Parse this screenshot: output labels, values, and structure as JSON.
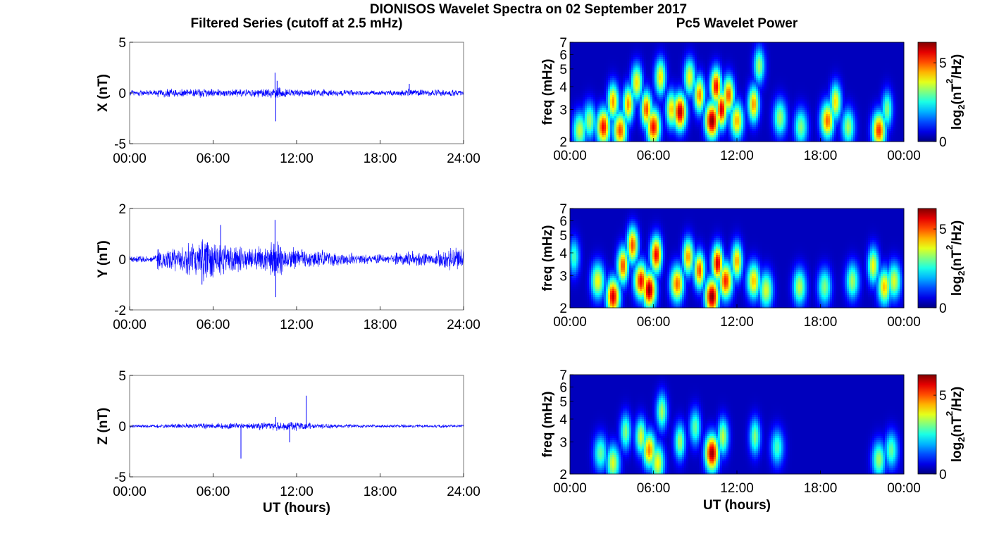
{
  "title": "DIONISOS Wavelet Spectra on 02 September 2017",
  "left_title": "Filtered Series (cutoff at 2.5 mHz)",
  "right_title": "Pc5 Wavelet Power",
  "xlabel": "UT (hours)",
  "colors": {
    "series": "#0000ff",
    "axes": "#000000",
    "background": "#ffffff"
  },
  "chart_data": [
    {
      "type": "line",
      "panel": "X",
      "ylabel": "X (nT)",
      "ylim": [
        -5,
        5
      ],
      "yticks": [
        "5",
        "0",
        "-5"
      ],
      "xticks": [
        "00:00",
        "06:00",
        "12:00",
        "18:00",
        "24:00"
      ],
      "xlim_hours": [
        0,
        24
      ],
      "grid": false,
      "series": [
        {
          "noise_amplitude_nT": [
            0.25,
            0.25,
            0.35,
            0.35,
            0.35,
            0.35,
            0.3,
            0.3,
            0.3,
            0.35,
            0.45,
            0.35,
            0.3,
            0.3,
            0.25,
            0.25,
            0.2,
            0.2,
            0.2,
            0.25,
            0.3,
            0.25,
            0.25,
            0.25
          ],
          "spikes": [
            {
              "x": 10.45,
              "y": 2.0
            },
            {
              "x": 10.5,
              "y": -2.8
            },
            {
              "x": 10.6,
              "y": 1.2
            },
            {
              "x": 20.1,
              "y": 0.9
            }
          ]
        }
      ]
    },
    {
      "type": "line",
      "panel": "Y",
      "ylabel": "Y (nT)",
      "ylim": [
        -2,
        2
      ],
      "yticks": [
        "2",
        "0",
        "-2"
      ],
      "xticks": [
        "00:00",
        "06:00",
        "12:00",
        "18:00",
        "24:00"
      ],
      "xlim_hours": [
        0,
        24
      ],
      "grid": false,
      "series": [
        {
          "noise_amplitude_nT": [
            0.12,
            0.12,
            0.35,
            0.4,
            0.55,
            0.7,
            0.55,
            0.45,
            0.35,
            0.4,
            0.6,
            0.35,
            0.3,
            0.3,
            0.25,
            0.2,
            0.15,
            0.15,
            0.15,
            0.2,
            0.25,
            0.2,
            0.3,
            0.35
          ],
          "spikes": [
            {
              "x": 6.55,
              "y": 1.35
            },
            {
              "x": 10.45,
              "y": 1.55
            },
            {
              "x": 10.5,
              "y": -1.5
            },
            {
              "x": 5.2,
              "y": -1.0
            }
          ]
        }
      ]
    },
    {
      "type": "line",
      "panel": "Z",
      "ylabel": "Z (nT)",
      "ylim": [
        -5,
        5
      ],
      "yticks": [
        "5",
        "0",
        "-5"
      ],
      "xticks": [
        "00:00",
        "06:00",
        "12:00",
        "18:00",
        "24:00"
      ],
      "xlim_hours": [
        0,
        24
      ],
      "grid": false,
      "series": [
        {
          "noise_amplitude_nT": [
            0.12,
            0.12,
            0.15,
            0.18,
            0.2,
            0.25,
            0.25,
            0.25,
            0.25,
            0.3,
            0.4,
            0.4,
            0.3,
            0.2,
            0.2,
            0.15,
            0.12,
            0.12,
            0.12,
            0.12,
            0.12,
            0.12,
            0.12,
            0.12
          ],
          "spikes": [
            {
              "x": 8.0,
              "y": -3.2
            },
            {
              "x": 10.5,
              "y": 0.9
            },
            {
              "x": 11.5,
              "y": -1.6
            },
            {
              "x": 12.7,
              "y": 3.0
            }
          ]
        }
      ]
    },
    {
      "type": "heatmap",
      "panel": "X",
      "ylabel": "freq (mHz)",
      "y_scale": "log",
      "ylim": [
        2,
        7
      ],
      "yticks": [
        "7",
        "6",
        "5",
        "4",
        "3",
        "2"
      ],
      "xticks": [
        "00:00",
        "06:00",
        "12:00",
        "18:00",
        "24:00"
      ],
      "xtick_labels": [
        "00:00",
        "06:00",
        "12:00",
        "18:00",
        "00:00"
      ],
      "xlim_hours": [
        0,
        24
      ],
      "colorbar": {
        "label_main": "log",
        "label_sub": "2",
        "label_tail": "(nT",
        "label_sup": "2",
        "label_end": "/Hz)",
        "range": [
          0,
          6.3
        ],
        "ticks": [
          "5",
          "0"
        ]
      },
      "blobs": [
        {
          "t": 0.7,
          "f": 2.3,
          "p": 3.5
        },
        {
          "t": 1.4,
          "f": 2.6,
          "p": 3.2
        },
        {
          "t": 2.4,
          "f": 2.4,
          "p": 5.5
        },
        {
          "t": 3.1,
          "f": 3.3,
          "p": 4.5
        },
        {
          "t": 3.6,
          "f": 2.3,
          "p": 5.0
        },
        {
          "t": 4.2,
          "f": 3.2,
          "p": 4.5
        },
        {
          "t": 4.8,
          "f": 4.2,
          "p": 4.0
        },
        {
          "t": 5.5,
          "f": 3.0,
          "p": 5.0
        },
        {
          "t": 6.0,
          "f": 2.4,
          "p": 5.5
        },
        {
          "t": 6.5,
          "f": 4.5,
          "p": 4.0
        },
        {
          "t": 7.3,
          "f": 3.0,
          "p": 4.2
        },
        {
          "t": 7.9,
          "f": 2.9,
          "p": 6.0
        },
        {
          "t": 8.6,
          "f": 4.5,
          "p": 3.8
        },
        {
          "t": 9.3,
          "f": 3.6,
          "p": 4.6
        },
        {
          "t": 10.2,
          "f": 2.6,
          "p": 6.3
        },
        {
          "t": 10.5,
          "f": 4.0,
          "p": 5.5
        },
        {
          "t": 10.9,
          "f": 3.0,
          "p": 5.8
        },
        {
          "t": 11.4,
          "f": 3.6,
          "p": 5.0
        },
        {
          "t": 12.0,
          "f": 2.6,
          "p": 4.3
        },
        {
          "t": 13.2,
          "f": 3.2,
          "p": 4.5
        },
        {
          "t": 13.6,
          "f": 5.2,
          "p": 3.2
        },
        {
          "t": 15.1,
          "f": 2.7,
          "p": 3.2
        },
        {
          "t": 16.6,
          "f": 2.4,
          "p": 3.0
        },
        {
          "t": 18.5,
          "f": 2.6,
          "p": 4.8
        },
        {
          "t": 19.1,
          "f": 3.3,
          "p": 4.0
        },
        {
          "t": 20.0,
          "f": 2.4,
          "p": 3.2
        },
        {
          "t": 22.2,
          "f": 2.3,
          "p": 5.2
        },
        {
          "t": 22.8,
          "f": 3.0,
          "p": 3.0
        }
      ]
    },
    {
      "type": "heatmap",
      "panel": "Y",
      "ylabel": "freq (mHz)",
      "y_scale": "log",
      "ylim": [
        2,
        7
      ],
      "yticks": [
        "7",
        "6",
        "5",
        "4",
        "3",
        "2"
      ],
      "xticks": [
        "00:00",
        "06:00",
        "12:00",
        "18:00",
        "24:00"
      ],
      "xtick_labels": [
        "00:00",
        "06:00",
        "12:00",
        "18:00",
        "00:00"
      ],
      "xlim_hours": [
        0,
        24
      ],
      "colorbar": {
        "label_main": "log",
        "label_sub": "2",
        "label_tail": "(nT",
        "label_sup": "2",
        "label_end": "/Hz)",
        "range": [
          0,
          6.3
        ],
        "ticks": [
          "5",
          "0"
        ]
      },
      "blobs": [
        {
          "t": 0.3,
          "f": 3.8,
          "p": 2.6
        },
        {
          "t": 2.0,
          "f": 2.8,
          "p": 3.8
        },
        {
          "t": 3.1,
          "f": 2.3,
          "p": 5.8
        },
        {
          "t": 3.8,
          "f": 3.4,
          "p": 5.0
        },
        {
          "t": 4.5,
          "f": 4.4,
          "p": 5.0
        },
        {
          "t": 5.1,
          "f": 2.8,
          "p": 5.5
        },
        {
          "t": 5.7,
          "f": 2.5,
          "p": 6.2
        },
        {
          "t": 6.2,
          "f": 3.9,
          "p": 5.6
        },
        {
          "t": 7.7,
          "f": 2.7,
          "p": 4.8
        },
        {
          "t": 8.5,
          "f": 3.8,
          "p": 4.5
        },
        {
          "t": 9.3,
          "f": 3.2,
          "p": 5.0
        },
        {
          "t": 10.2,
          "f": 2.3,
          "p": 6.3
        },
        {
          "t": 10.6,
          "f": 3.5,
          "p": 5.8
        },
        {
          "t": 11.2,
          "f": 2.8,
          "p": 5.3
        },
        {
          "t": 12.0,
          "f": 3.6,
          "p": 4.4
        },
        {
          "t": 13.2,
          "f": 2.8,
          "p": 4.2
        },
        {
          "t": 14.1,
          "f": 2.5,
          "p": 3.6
        },
        {
          "t": 16.5,
          "f": 2.6,
          "p": 3.4
        },
        {
          "t": 18.3,
          "f": 2.6,
          "p": 3.0
        },
        {
          "t": 20.3,
          "f": 2.8,
          "p": 3.2
        },
        {
          "t": 21.8,
          "f": 3.4,
          "p": 3.8
        },
        {
          "t": 22.6,
          "f": 2.6,
          "p": 4.2
        },
        {
          "t": 23.3,
          "f": 2.8,
          "p": 3.6
        }
      ]
    },
    {
      "type": "heatmap",
      "panel": "Z",
      "ylabel": "freq (mHz)",
      "y_scale": "log",
      "ylim": [
        2,
        7
      ],
      "yticks": [
        "7",
        "6",
        "5",
        "4",
        "3",
        "2"
      ],
      "xticks": [
        "00:00",
        "06:00",
        "12:00",
        "18:00",
        "24:00"
      ],
      "xtick_labels": [
        "00:00",
        "06:00",
        "12:00",
        "18:00",
        "00:00"
      ],
      "xlim_hours": [
        0,
        24
      ],
      "colorbar": {
        "label_main": "log",
        "label_sub": "2",
        "label_tail": "(nT",
        "label_sup": "2",
        "label_end": "/Hz)",
        "range": [
          0,
          6.3
        ],
        "ticks": [
          "5",
          "0"
        ]
      },
      "blobs": [
        {
          "t": 2.2,
          "f": 2.6,
          "p": 2.8
        },
        {
          "t": 3.1,
          "f": 2.3,
          "p": 3.6
        },
        {
          "t": 4.0,
          "f": 3.4,
          "p": 3.0
        },
        {
          "t": 5.1,
          "f": 3.2,
          "p": 3.6
        },
        {
          "t": 5.7,
          "f": 2.7,
          "p": 4.6
        },
        {
          "t": 6.3,
          "f": 2.3,
          "p": 3.8
        },
        {
          "t": 6.6,
          "f": 4.4,
          "p": 3.2
        },
        {
          "t": 7.9,
          "f": 3.0,
          "p": 3.2
        },
        {
          "t": 9.0,
          "f": 3.6,
          "p": 2.8
        },
        {
          "t": 10.2,
          "f": 2.6,
          "p": 6.2
        },
        {
          "t": 11.0,
          "f": 3.2,
          "p": 3.4
        },
        {
          "t": 13.3,
          "f": 3.2,
          "p": 3.0
        },
        {
          "t": 14.9,
          "f": 2.8,
          "p": 2.6
        },
        {
          "t": 22.2,
          "f": 2.4,
          "p": 3.2
        },
        {
          "t": 23.1,
          "f": 2.7,
          "p": 2.8
        }
      ]
    }
  ]
}
